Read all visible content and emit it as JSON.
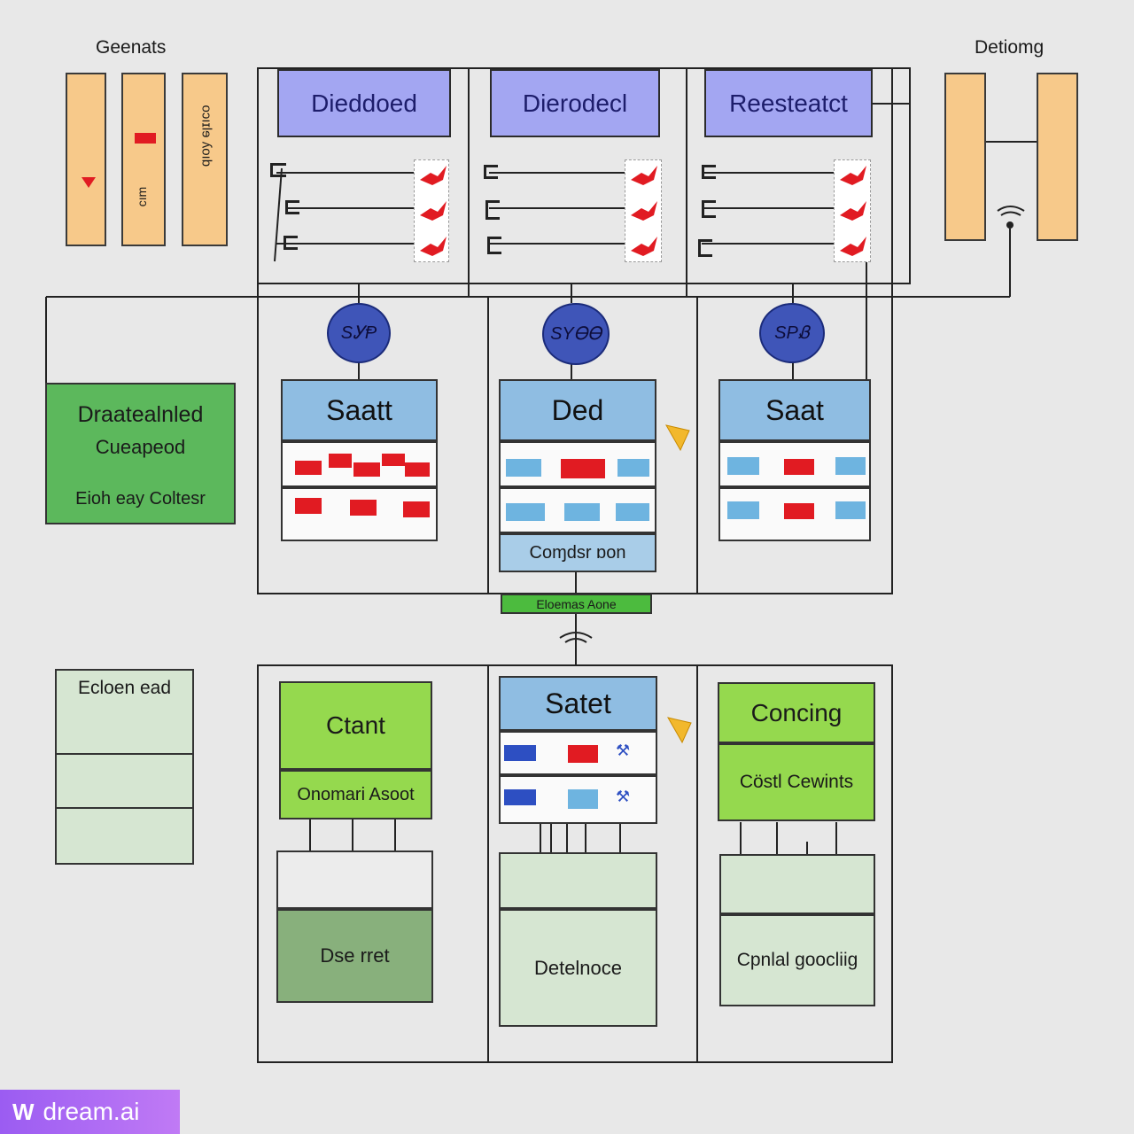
{
  "left_top": {
    "label": "Geenats",
    "bar3_text": "oɔıɪlɘ ʎoıb",
    "bar2_text": "ɯıɔ"
  },
  "right_top": {
    "label": "Detiomg"
  },
  "columns_top": [
    {
      "header": "Dieddoed",
      "node": "SᎩⱣ",
      "card": "Saatt"
    },
    {
      "header": "Dierodecl",
      "node": "SYᎾᎾ",
      "card": "Ded",
      "footer": "Coɱdsr ɒon"
    },
    {
      "header": "Reesteatct",
      "node": "SPᏰ",
      "card": "Saat"
    }
  ],
  "left_green": {
    "title": "Draatealnled",
    "subtitle": "Cueapeod",
    "footer": "Eioh eay Coltesr"
  },
  "bridge_label": "Eloemas Aone",
  "left_bottom": {
    "label": "Ecloen ead"
  },
  "columns_bottom": [
    {
      "title": "Ctant",
      "subtitle": "Onomari Asoot",
      "footer": "Dse rret"
    },
    {
      "title": "Satet",
      "footer": "Detelnoce"
    },
    {
      "title": "Concing",
      "subtitle": "Cöstl Cewints",
      "footer": "Cpnlal goocliig"
    }
  ],
  "watermark": "dream.ai"
}
